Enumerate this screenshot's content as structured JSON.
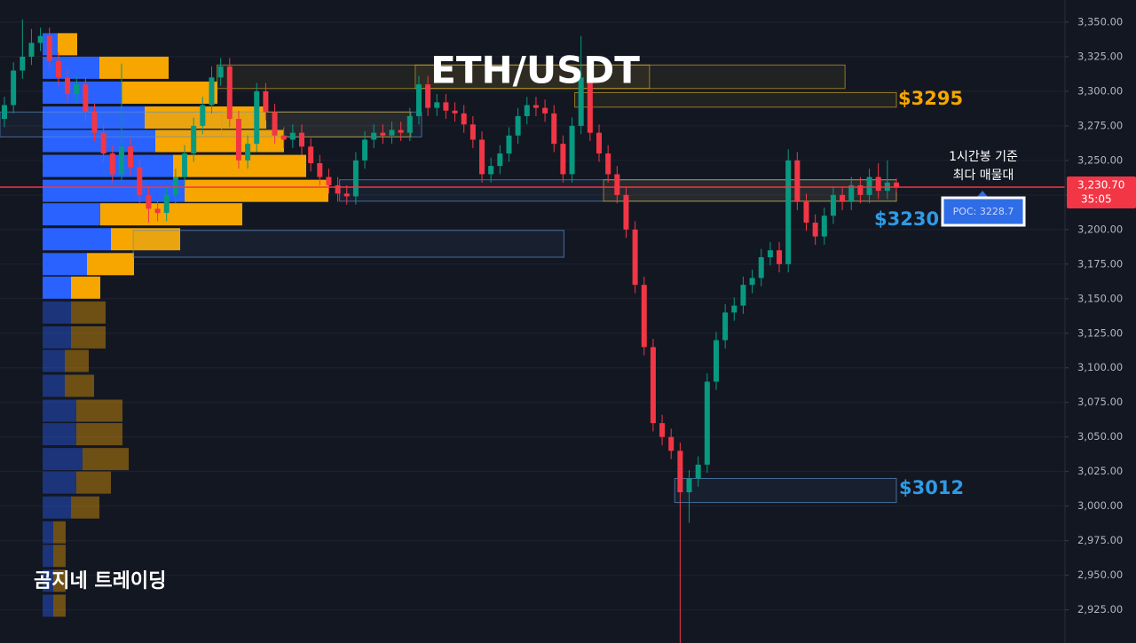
{
  "chart_data": {
    "type": "candlestick",
    "title": "ETH/USDT",
    "watermark": "곰지네 트레이딩",
    "up_color": "#089981",
    "down_color": "#f23645",
    "ylim": [
      2901,
      3366
    ],
    "yticks": [
      {
        "value": 2925,
        "label": "2,925.00"
      },
      {
        "value": 2950,
        "label": "2,950.00"
      },
      {
        "value": 2975,
        "label": "2,975.00"
      },
      {
        "value": 3000,
        "label": "3,000.00"
      },
      {
        "value": 3025,
        "label": "3,025.00"
      },
      {
        "value": 3050,
        "label": "3,050.00"
      },
      {
        "value": 3075,
        "label": "3,075.00"
      },
      {
        "value": 3100,
        "label": "3,100.00"
      },
      {
        "value": 3125,
        "label": "3,125.00"
      },
      {
        "value": 3150,
        "label": "3,150.00"
      },
      {
        "value": 3175,
        "label": "3,175.00"
      },
      {
        "value": 3200,
        "label": "3,200.00"
      },
      {
        "value": 3225,
        "label": "3,225.00"
      },
      {
        "value": 3250,
        "label": "3,250.00"
      },
      {
        "value": 3275,
        "label": "3,275.00"
      },
      {
        "value": 3300,
        "label": "3,300.00"
      },
      {
        "value": 3325,
        "label": "3,325.00"
      },
      {
        "value": 3350,
        "label": "3,350.00"
      }
    ],
    "grid": true,
    "open": [
      3280,
      3290,
      3315,
      3325,
      3335,
      3340,
      3322,
      3310,
      3298,
      3305,
      3285,
      3270,
      3255,
      3240,
      3260,
      3245,
      3225,
      3215,
      3212,
      3225,
      3238,
      3255,
      3275,
      3290,
      3310,
      3318,
      3280,
      3250,
      3262,
      3300,
      3285,
      3268,
      3265,
      3270,
      3260,
      3248,
      3238,
      3232,
      3226,
      3224,
      3250,
      3265,
      3270,
      3268,
      3272,
      3270,
      3282,
      3305,
      3288,
      3292,
      3286,
      3284,
      3276,
      3265,
      3240,
      3246,
      3255,
      3268,
      3282,
      3290,
      3288,
      3284,
      3262,
      3240,
      3275,
      3310,
      3270,
      3255,
      3240,
      3225,
      3200,
      3160,
      3115,
      3060,
      3050,
      3040,
      3010,
      3020,
      3030,
      3090,
      3120,
      3140,
      3145,
      3160,
      3165,
      3180,
      3185,
      3175,
      3250,
      3220,
      3205,
      3195,
      3210,
      3225,
      3220,
      3232,
      3225,
      3238,
      3228,
      3234
    ],
    "high": [
      3296,
      3321,
      3352,
      3345,
      3346,
      3346,
      3328,
      3316,
      3311,
      3311,
      3291,
      3276,
      3261,
      3320,
      3266,
      3251,
      3231,
      3221,
      3231,
      3244,
      3261,
      3281,
      3296,
      3318,
      3324,
      3324,
      3286,
      3268,
      3306,
      3306,
      3291,
      3274,
      3276,
      3276,
      3266,
      3254,
      3244,
      3238,
      3232,
      3256,
      3271,
      3276,
      3276,
      3278,
      3278,
      3288,
      3311,
      3311,
      3298,
      3298,
      3292,
      3290,
      3282,
      3271,
      3252,
      3261,
      3274,
      3288,
      3296,
      3296,
      3294,
      3290,
      3268,
      3281,
      3340,
      3316,
      3276,
      3261,
      3246,
      3231,
      3206,
      3166,
      3121,
      3066,
      3056,
      3046,
      3026,
      3036,
      3096,
      3126,
      3146,
      3151,
      3166,
      3171,
      3186,
      3191,
      3191,
      3258,
      3256,
      3226,
      3211,
      3216,
      3231,
      3231,
      3238,
      3238,
      3244,
      3248,
      3250,
      3237
    ],
    "low": [
      3274,
      3284,
      3309,
      3319,
      3329,
      3316,
      3304,
      3292,
      3292,
      3279,
      3264,
      3249,
      3234,
      3234,
      3239,
      3219,
      3205,
      3206,
      3206,
      3219,
      3232,
      3249,
      3269,
      3284,
      3304,
      3274,
      3244,
      3244,
      3256,
      3279,
      3262,
      3259,
      3259,
      3254,
      3242,
      3232,
      3226,
      3220,
      3218,
      3218,
      3244,
      3259,
      3262,
      3262,
      3264,
      3264,
      3276,
      3282,
      3282,
      3280,
      3278,
      3270,
      3259,
      3234,
      3234,
      3240,
      3249,
      3262,
      3276,
      3282,
      3278,
      3256,
      3234,
      3234,
      3269,
      3264,
      3249,
      3234,
      3219,
      3194,
      3154,
      3109,
      3054,
      3044,
      3034,
      2901,
      2988,
      3014,
      3024,
      3084,
      3114,
      3134,
      3139,
      3154,
      3159,
      3174,
      3169,
      3169,
      3214,
      3199,
      3189,
      3189,
      3204,
      3214,
      3214,
      3219,
      3219,
      3222,
      3222,
      3227
    ],
    "close": [
      3290,
      3315,
      3325,
      3335,
      3340,
      3322,
      3310,
      3298,
      3305,
      3285,
      3270,
      3255,
      3240,
      3260,
      3245,
      3225,
      3215,
      3212,
      3225,
      3238,
      3255,
      3275,
      3290,
      3310,
      3318,
      3280,
      3250,
      3262,
      3300,
      3285,
      3268,
      3265,
      3270,
      3260,
      3248,
      3238,
      3232,
      3226,
      3224,
      3250,
      3265,
      3270,
      3268,
      3272,
      3270,
      3282,
      3305,
      3288,
      3292,
      3286,
      3284,
      3276,
      3265,
      3240,
      3246,
      3255,
      3268,
      3282,
      3290,
      3288,
      3284,
      3262,
      3240,
      3275,
      3310,
      3270,
      3255,
      3240,
      3225,
      3200,
      3160,
      3115,
      3060,
      3050,
      3040,
      3010,
      3020,
      3030,
      3090,
      3120,
      3140,
      3145,
      3160,
      3165,
      3180,
      3185,
      3175,
      3250,
      3220,
      3205,
      3195,
      3210,
      3225,
      3220,
      3232,
      3225,
      3238,
      3228,
      3234,
      3231
    ],
    "volume_profile": {
      "levels": [
        3334,
        3317,
        3299,
        3281,
        3264,
        3246,
        3228,
        3211,
        3193,
        3175,
        3158,
        3140,
        3122,
        3105,
        3087,
        3069,
        3052,
        3034,
        3017,
        2999,
        2981,
        2964,
        2946,
        2928
      ],
      "buy": [
        17,
        64,
        89,
        115,
        127,
        147,
        160,
        65,
        77,
        50,
        32,
        32,
        32,
        25,
        25,
        38,
        38,
        45,
        38,
        32,
        12,
        12,
        12,
        12
      ],
      "sell": [
        22,
        78,
        108,
        137,
        145,
        150,
        162,
        160,
        78,
        53,
        33,
        39,
        39,
        27,
        33,
        52,
        52,
        52,
        39,
        32,
        14,
        14,
        14,
        14
      ],
      "buy_color": "#2962ff",
      "sell_color": "#f7a600",
      "value_area": [
        3150,
        3345
      ]
    },
    "zones": [
      {
        "low": 3302,
        "high": 3319,
        "from": 23.6,
        "to": 93.3,
        "color": "#c9a227"
      },
      {
        "low": 3302,
        "high": 3319,
        "from": 45.6,
        "to": 71.6,
        "color": "#c9a227"
      },
      {
        "low": 3288.5,
        "high": 3299,
        "from": 63.3,
        "to": 99,
        "color": "#c9a227"
      },
      {
        "low": 3267,
        "high": 3285,
        "from": -0.5,
        "to": 46.3,
        "color": "#5b8fc9"
      },
      {
        "low": 3267,
        "high": 3285,
        "from": 24.1,
        "to": 45.1,
        "color": "#c9a227"
      },
      {
        "low": 3220.5,
        "high": 3236,
        "from": 37.2,
        "to": 99,
        "color": "#5b8fc9"
      },
      {
        "low": 3220.5,
        "high": 3236,
        "from": 66.5,
        "to": 99,
        "color": "#c9a227"
      },
      {
        "low": 3180,
        "high": 3199.4,
        "from": 14.3,
        "to": 62.1,
        "color": "#5b8fc9"
      },
      {
        "low": 3002.6,
        "high": 3020,
        "from": 74.4,
        "to": 99,
        "color": "#5b8fc9"
      }
    ],
    "last_price": {
      "value": 3230.7,
      "label": "3,230.70",
      "countdown": "35:05",
      "color": "#f23645"
    },
    "poc": {
      "value": 3228.7,
      "label": "POC: 3228.7"
    },
    "annotations": [
      "$3295",
      "$3230",
      "$3012",
      "1시간봉 기준",
      "최다 매물대"
    ]
  }
}
